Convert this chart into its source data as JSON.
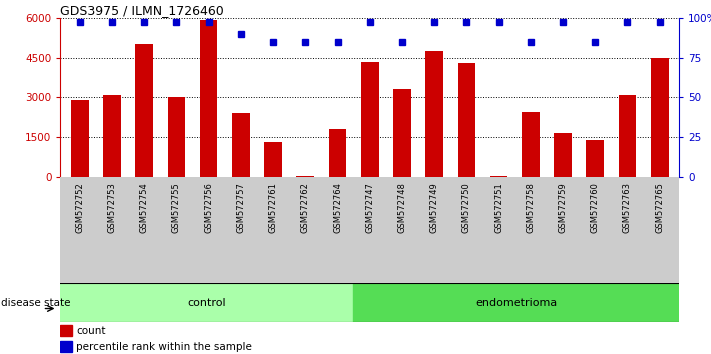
{
  "title": "GDS3975 / ILMN_1726460",
  "samples": [
    "GSM572752",
    "GSM572753",
    "GSM572754",
    "GSM572755",
    "GSM572756",
    "GSM572757",
    "GSM572761",
    "GSM572762",
    "GSM572764",
    "GSM572747",
    "GSM572748",
    "GSM572749",
    "GSM572750",
    "GSM572751",
    "GSM572758",
    "GSM572759",
    "GSM572760",
    "GSM572763",
    "GSM572765"
  ],
  "counts": [
    2900,
    3100,
    5000,
    3000,
    5900,
    2400,
    1300,
    50,
    1800,
    4350,
    3300,
    4750,
    4300,
    50,
    2450,
    1650,
    1400,
    3100,
    4500
  ],
  "percentiles": [
    97,
    97,
    97,
    97,
    97,
    90,
    85,
    85,
    85,
    97,
    85,
    97,
    97,
    97,
    85,
    97,
    85,
    97,
    97
  ],
  "control_count": 9,
  "endometrioma_count": 10,
  "bar_color": "#cc0000",
  "dot_color": "#0000cc",
  "control_bg": "#aaffaa",
  "endometrioma_bg": "#55dd55",
  "label_bg": "#cccccc",
  "ylim_left": [
    0,
    6000
  ],
  "yticks_left": [
    0,
    1500,
    3000,
    4500,
    6000
  ],
  "ylim_right": [
    0,
    100
  ],
  "yticks_right": [
    0,
    25,
    50,
    75,
    100
  ],
  "ylabel_left_color": "#cc0000",
  "ylabel_right_color": "#0000cc",
  "bar_width": 0.55
}
